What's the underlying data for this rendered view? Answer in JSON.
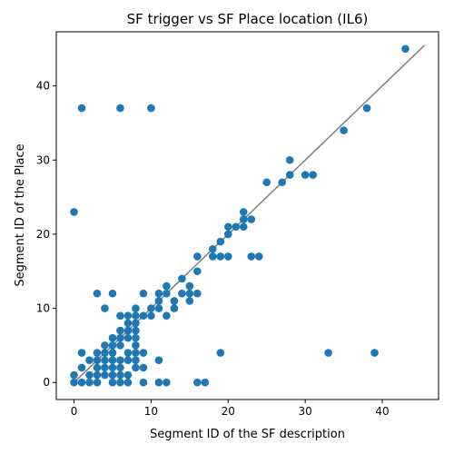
{
  "chart_data": {
    "type": "scatter",
    "title": "SF trigger vs SF Place location (IL6)",
    "xlabel": "Segment ID of the SF description",
    "ylabel": "Segment ID of the Place",
    "xlim": [
      -2.3,
      47.3
    ],
    "ylim": [
      -2.3,
      47.3
    ],
    "xticks": [
      0,
      10,
      20,
      30,
      40
    ],
    "yticks": [
      0,
      10,
      20,
      30,
      40
    ],
    "point_color": "#1f77b4",
    "line_color": "#808080",
    "grid": false,
    "reference_line": {
      "x": [
        0,
        45.5
      ],
      "y": [
        0,
        45.5
      ]
    },
    "points": [
      {
        "x": 43,
        "y": 45
      },
      {
        "x": 1,
        "y": 37
      },
      {
        "x": 6,
        "y": 37
      },
      {
        "x": 10,
        "y": 37
      },
      {
        "x": 38,
        "y": 37
      },
      {
        "x": 35,
        "y": 34
      },
      {
        "x": 28,
        "y": 30
      },
      {
        "x": 28,
        "y": 28
      },
      {
        "x": 30,
        "y": 28
      },
      {
        "x": 31,
        "y": 28
      },
      {
        "x": 25,
        "y": 27
      },
      {
        "x": 27,
        "y": 27
      },
      {
        "x": 0,
        "y": 23
      },
      {
        "x": 22,
        "y": 23
      },
      {
        "x": 22,
        "y": 22
      },
      {
        "x": 23,
        "y": 22
      },
      {
        "x": 20,
        "y": 21
      },
      {
        "x": 21,
        "y": 21
      },
      {
        "x": 22,
        "y": 21
      },
      {
        "x": 20,
        "y": 20
      },
      {
        "x": 19,
        "y": 19
      },
      {
        "x": 18,
        "y": 18
      },
      {
        "x": 16,
        "y": 17
      },
      {
        "x": 18,
        "y": 17
      },
      {
        "x": 19,
        "y": 17
      },
      {
        "x": 20,
        "y": 17
      },
      {
        "x": 23,
        "y": 17
      },
      {
        "x": 24,
        "y": 17
      },
      {
        "x": 16,
        "y": 15
      },
      {
        "x": 14,
        "y": 14
      },
      {
        "x": 12,
        "y": 13
      },
      {
        "x": 15,
        "y": 13
      },
      {
        "x": 3,
        "y": 12
      },
      {
        "x": 5,
        "y": 12
      },
      {
        "x": 9,
        "y": 12
      },
      {
        "x": 11,
        "y": 12
      },
      {
        "x": 12,
        "y": 12
      },
      {
        "x": 14,
        "y": 12
      },
      {
        "x": 15,
        "y": 12
      },
      {
        "x": 16,
        "y": 12
      },
      {
        "x": 11,
        "y": 11
      },
      {
        "x": 13,
        "y": 11
      },
      {
        "x": 15,
        "y": 11
      },
      {
        "x": 4,
        "y": 10
      },
      {
        "x": 8,
        "y": 10
      },
      {
        "x": 10,
        "y": 10
      },
      {
        "x": 11,
        "y": 10
      },
      {
        "x": 13,
        "y": 10
      },
      {
        "x": 6,
        "y": 9
      },
      {
        "x": 7,
        "y": 9
      },
      {
        "x": 8,
        "y": 9
      },
      {
        "x": 9,
        "y": 9
      },
      {
        "x": 10,
        "y": 9
      },
      {
        "x": 12,
        "y": 9
      },
      {
        "x": 7,
        "y": 8
      },
      {
        "x": 8,
        "y": 8
      },
      {
        "x": 6,
        "y": 7
      },
      {
        "x": 7,
        "y": 7
      },
      {
        "x": 8,
        "y": 7
      },
      {
        "x": 5,
        "y": 6
      },
      {
        "x": 6,
        "y": 6
      },
      {
        "x": 7,
        "y": 6
      },
      {
        "x": 8,
        "y": 6
      },
      {
        "x": 4,
        "y": 5
      },
      {
        "x": 5,
        "y": 5
      },
      {
        "x": 6,
        "y": 5
      },
      {
        "x": 8,
        "y": 5
      },
      {
        "x": 1,
        "y": 4
      },
      {
        "x": 3,
        "y": 4
      },
      {
        "x": 4,
        "y": 4
      },
      {
        "x": 5,
        "y": 4
      },
      {
        "x": 7,
        "y": 4
      },
      {
        "x": 8,
        "y": 4
      },
      {
        "x": 9,
        "y": 4
      },
      {
        "x": 19,
        "y": 4
      },
      {
        "x": 33,
        "y": 4
      },
      {
        "x": 39,
        "y": 4
      },
      {
        "x": 2,
        "y": 3
      },
      {
        "x": 3,
        "y": 3
      },
      {
        "x": 4,
        "y": 3
      },
      {
        "x": 5,
        "y": 3
      },
      {
        "x": 6,
        "y": 3
      },
      {
        "x": 7,
        "y": 3
      },
      {
        "x": 8,
        "y": 3
      },
      {
        "x": 11,
        "y": 3
      },
      {
        "x": 1,
        "y": 2
      },
      {
        "x": 3,
        "y": 2
      },
      {
        "x": 4,
        "y": 2
      },
      {
        "x": 5,
        "y": 2
      },
      {
        "x": 6,
        "y": 2
      },
      {
        "x": 8,
        "y": 2
      },
      {
        "x": 9,
        "y": 2
      },
      {
        "x": 0,
        "y": 1
      },
      {
        "x": 2,
        "y": 1
      },
      {
        "x": 3,
        "y": 1
      },
      {
        "x": 4,
        "y": 1
      },
      {
        "x": 5,
        "y": 1
      },
      {
        "x": 6,
        "y": 1
      },
      {
        "x": 7,
        "y": 1
      },
      {
        "x": 0,
        "y": 0
      },
      {
        "x": 1,
        "y": 0
      },
      {
        "x": 2,
        "y": 0
      },
      {
        "x": 3,
        "y": 0
      },
      {
        "x": 5,
        "y": 0
      },
      {
        "x": 6,
        "y": 0
      },
      {
        "x": 7,
        "y": 0
      },
      {
        "x": 9,
        "y": 0
      },
      {
        "x": 11,
        "y": 0
      },
      {
        "x": 12,
        "y": 0
      },
      {
        "x": 16,
        "y": 0
      },
      {
        "x": 17,
        "y": 0
      }
    ]
  }
}
